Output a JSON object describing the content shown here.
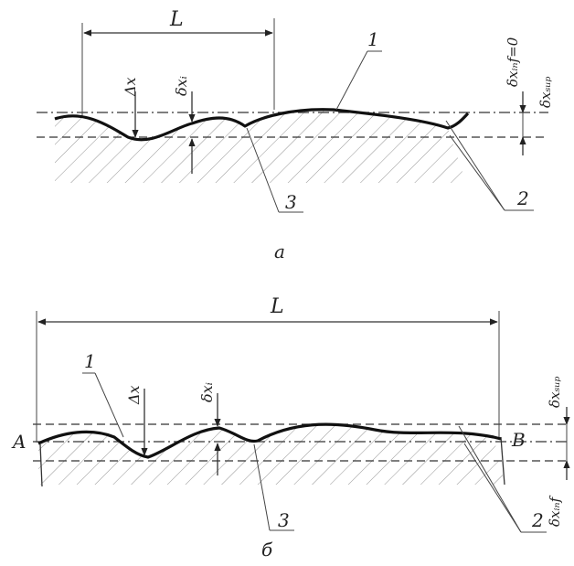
{
  "figure_a": {
    "length_label": "L",
    "delta_x_label": "Δx",
    "delta_xi_label": "δxᵢ",
    "delta_x_inf_label": "δxᵢₙf=0",
    "delta_x_sup_label": "δxₛᵤₚ",
    "callout_1": "1",
    "callout_2": "2",
    "callout_3": "3",
    "caption": "a"
  },
  "figure_b": {
    "length_label": "L",
    "delta_x_label": "Δx",
    "delta_xi_label": "δxᵢ",
    "delta_x_sup_label": "δxₛᵤₚ",
    "delta_x_inf_label": "δxᵢₙf",
    "point_a_label": "A",
    "point_b_label": "B",
    "callout_1": "1",
    "callout_2": "2",
    "callout_3": "3",
    "caption": "б"
  }
}
